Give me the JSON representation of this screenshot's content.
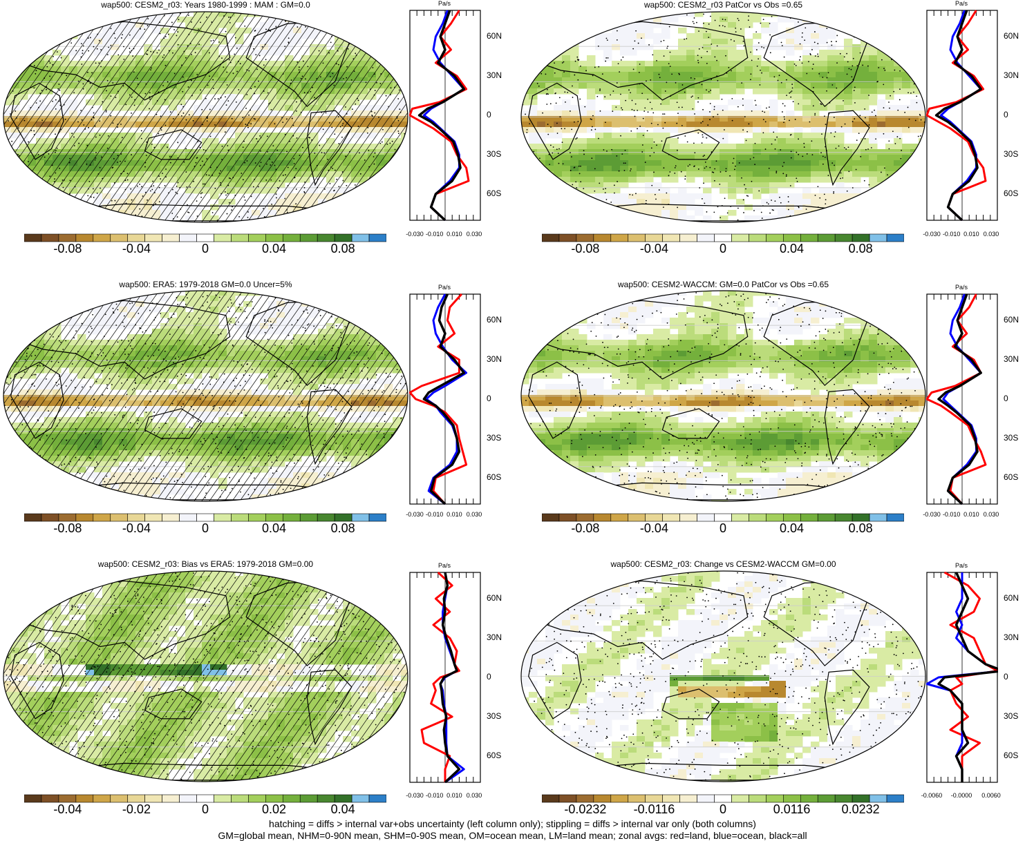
{
  "panels": [
    {
      "title": "wap500: CESM2_r03: Years 1980-1999 : MAM : GM=0.0",
      "hatched": true,
      "field": "model",
      "colorbar_labels": [
        "-0.08",
        "-0.04",
        "0",
        "0.04",
        "0.08"
      ],
      "profile_xticks": [
        "-0.030",
        "-0.010",
        "0.010",
        "0.030"
      ]
    },
    {
      "title": "wap500: CESM2_r03 PatCor vs Obs =0.65",
      "hatched": false,
      "field": "model",
      "colorbar_labels": [
        "-0.08",
        "-0.04",
        "0",
        "0.04",
        "0.08"
      ],
      "profile_xticks": [
        "-0.030",
        "-0.010",
        "0.010",
        "0.030"
      ]
    },
    {
      "title": "wap500: ERA5: 1979-2018 GM=0.0 Uncer=5%",
      "hatched": true,
      "field": "obs",
      "colorbar_labels": [
        "-0.08",
        "-0.04",
        "0",
        "0.04",
        "0.08"
      ],
      "profile_xticks": [
        "-0.030",
        "-0.010",
        "0.010",
        "0.030"
      ]
    },
    {
      "title": "wap500: CESM2-WACCM: GM=0.0 PatCor vs Obs =0.65",
      "hatched": false,
      "field": "model2",
      "colorbar_labels": [
        "-0.08",
        "-0.04",
        "0",
        "0.04",
        "0.08"
      ],
      "profile_xticks": [
        "-0.030",
        "-0.010",
        "0.010",
        "0.030"
      ]
    },
    {
      "title": "wap500: CESM2_r03: Bias vs ERA5: 1979-2018 GM=0.00",
      "hatched": true,
      "field": "bias",
      "colorbar_labels": [
        "-0.04",
        "-0.02",
        "0",
        "0.02",
        "0.04"
      ],
      "profile_xticks": [
        "-0.030",
        "-0.010",
        "0.010",
        "0.030"
      ]
    },
    {
      "title": "wap500: CESM2_r03: Change vs CESM2-WACCM GM=0.00",
      "hatched": false,
      "field": "change",
      "colorbar_labels": [
        "-0.0232",
        "-0.0116",
        "0",
        "0.0116",
        "0.0232"
      ],
      "profile_xticks": [
        "-0.0060",
        "-0.0000",
        "0.0060"
      ]
    }
  ],
  "profile_units": "Pa/s",
  "profile_lat_labels": [
    "60N",
    "30N",
    "0",
    "30S",
    "60S"
  ],
  "colormap": [
    "#5a3a1c",
    "#7e5026",
    "#9c6c30",
    "#b8882f",
    "#cfa648",
    "#dcbf6f",
    "#e8d796",
    "#f0e6b4",
    "#f6efd1",
    "#f3f4fa",
    "#ffffff",
    "#d9eba4",
    "#bbdc7b",
    "#a3cf5c",
    "#8cc047",
    "#74b03c",
    "#5c9c35",
    "#48872f",
    "#337129",
    "#80c0e8",
    "#2c7fc8"
  ],
  "line_colors": {
    "land": "#ff0000",
    "ocean": "#0000ff",
    "all": "#000000"
  },
  "footnote": {
    "line1": "hatching = diffs > internal var+obs uncertainty (left column only); stippling = diffs > internal var only (both columns)",
    "line2": "GM=global mean, NHM=0-90N mean, SHM=0-90S mean, OM=ocean mean, LM=land mean; zonal avgs: red=land, blue=ocean, black=all"
  },
  "chart_data": {
    "type": "heatmap",
    "description_of_panels": "six Robinson-projection global maps of wap500 with zonal-average profiles",
    "zonal_profiles": {
      "lat": [
        80,
        70,
        60,
        50,
        40,
        30,
        20,
        10,
        5,
        0,
        -5,
        -10,
        -20,
        -30,
        -40,
        -50,
        -60,
        -70,
        -80
      ],
      "panels": [
        {
          "name": "CESM2_r03",
          "land": [
            0.012,
            0.005,
            -0.004,
            0.005,
            -0.008,
            0.01,
            0.018,
            -0.005,
            -0.028,
            -0.03,
            -0.02,
            -0.01,
            0.005,
            0.01,
            0.018,
            0.02,
            -0.008,
            -0.012,
            0.0
          ],
          "ocean": [
            0.002,
            -0.002,
            -0.008,
            -0.01,
            -0.004,
            0.006,
            0.016,
            -0.002,
            -0.012,
            -0.018,
            -0.01,
            -0.004,
            0.008,
            0.012,
            0.012,
            0.004,
            -0.008,
            -0.012,
            0.0
          ],
          "all": [
            0.004,
            0.0,
            -0.004,
            0.0,
            -0.006,
            0.008,
            0.016,
            -0.002,
            -0.015,
            -0.022,
            -0.012,
            -0.005,
            0.007,
            0.011,
            0.013,
            0.006,
            -0.008,
            -0.012,
            0.0
          ]
        },
        {
          "name": "CESM2_r03 PatCor",
          "land": [
            0.012,
            0.005,
            -0.004,
            0.005,
            -0.008,
            0.01,
            0.018,
            -0.005,
            -0.028,
            -0.03,
            -0.02,
            -0.01,
            0.005,
            0.01,
            0.018,
            0.02,
            -0.008,
            -0.012,
            0.0
          ],
          "ocean": [
            0.002,
            -0.002,
            -0.008,
            -0.01,
            -0.004,
            0.006,
            0.016,
            -0.002,
            -0.012,
            -0.018,
            -0.01,
            -0.004,
            0.008,
            0.012,
            0.012,
            0.004,
            -0.008,
            -0.012,
            0.0
          ],
          "all": [
            0.004,
            0.0,
            -0.004,
            0.0,
            -0.006,
            0.008,
            0.016,
            -0.002,
            -0.015,
            -0.022,
            -0.012,
            -0.005,
            0.007,
            0.011,
            0.013,
            0.006,
            -0.008,
            -0.012,
            0.0
          ]
        },
        {
          "name": "ERA5",
          "land": [
            0.014,
            0.004,
            0.002,
            0.008,
            -0.006,
            0.012,
            0.012,
            -0.02,
            -0.03,
            -0.025,
            -0.01,
            0.0,
            0.01,
            0.012,
            0.015,
            0.018,
            -0.008,
            -0.01,
            0.0
          ],
          "ocean": [
            0.0,
            -0.006,
            -0.01,
            -0.008,
            -0.002,
            0.006,
            0.018,
            0.0,
            -0.01,
            -0.016,
            -0.008,
            -0.004,
            0.006,
            0.01,
            0.01,
            0.004,
            -0.01,
            -0.014,
            0.0
          ],
          "all": [
            0.002,
            -0.003,
            -0.005,
            0.0,
            -0.004,
            0.008,
            0.016,
            -0.004,
            -0.014,
            -0.018,
            -0.008,
            -0.002,
            0.007,
            0.01,
            0.012,
            0.006,
            -0.009,
            -0.012,
            0.0
          ]
        },
        {
          "name": "CESM2-WACCM",
          "land": [
            0.012,
            0.006,
            -0.004,
            0.004,
            -0.008,
            0.01,
            0.016,
            -0.006,
            -0.026,
            -0.03,
            -0.018,
            -0.01,
            0.005,
            0.01,
            0.016,
            0.02,
            -0.008,
            -0.01,
            0.0
          ],
          "ocean": [
            0.002,
            -0.002,
            -0.008,
            -0.01,
            -0.004,
            0.006,
            0.016,
            -0.002,
            -0.012,
            -0.016,
            -0.01,
            -0.004,
            0.008,
            0.012,
            0.012,
            0.004,
            -0.008,
            -0.012,
            0.0
          ],
          "all": [
            0.004,
            0.0,
            -0.004,
            0.0,
            -0.006,
            0.008,
            0.016,
            -0.002,
            -0.014,
            -0.02,
            -0.012,
            -0.005,
            0.007,
            0.011,
            0.013,
            0.006,
            -0.008,
            -0.012,
            0.0
          ]
        },
        {
          "name": "Bias vs ERA5",
          "land": [
            -0.006,
            0.006,
            -0.008,
            0.004,
            -0.01,
            0.004,
            0.01,
            0.008,
            0.012,
            -0.004,
            -0.01,
            -0.008,
            -0.012,
            0.006,
            -0.02,
            -0.018,
            0.004,
            0.0,
            0.0
          ],
          "ocean": [
            0.0,
            0.002,
            0.0,
            -0.002,
            -0.002,
            0.0,
            0.004,
            0.008,
            0.01,
            0.0,
            -0.004,
            -0.002,
            -0.001,
            0.001,
            0.001,
            0.001,
            0.002,
            0.016,
            0.0
          ],
          "all": [
            0.0,
            0.002,
            -0.001,
            0.0,
            -0.002,
            0.001,
            0.005,
            0.008,
            0.01,
            -0.001,
            -0.004,
            -0.003,
            -0.002,
            0.001,
            -0.001,
            0.0,
            0.002,
            0.012,
            0.0
          ]
        },
        {
          "name": "Change vs CESM2-WACCM",
          "land": [
            -0.003,
            0.001,
            0.003,
            0.002,
            -0.002,
            0.002,
            0.003,
            0.004,
            0.006,
            -0.001,
            0.0,
            -0.002,
            -0.001,
            0.001,
            -0.002,
            0.003,
            0.0,
            0.0,
            0.0
          ],
          "ocean": [
            0.0,
            0.0,
            0.0,
            -0.001,
            0.0,
            -0.001,
            0.001,
            0.004,
            0.007,
            -0.004,
            -0.006,
            -0.002,
            0.0,
            0.0,
            0.0,
            0.0,
            -0.001,
            0.0,
            0.0
          ],
          "all": [
            -0.001,
            0.0,
            0.001,
            0.0,
            -0.001,
            0.0,
            0.001,
            0.004,
            0.007,
            -0.003,
            -0.004,
            -0.002,
            0.0,
            0.0,
            0.0,
            0.001,
            -0.001,
            0.0,
            0.0
          ]
        }
      ],
      "xlim_default": [
        -0.03,
        0.03
      ],
      "xlim_change": [
        -0.006,
        0.006
      ],
      "ylim": [
        -80,
        80
      ]
    },
    "colorbar_ticks": {
      "default": [
        "-0.08",
        "-0.04",
        "0",
        "0.04",
        "0.08"
      ],
      "bias": [
        "-0.04",
        "-0.02",
        "0",
        "0.02",
        "0.04"
      ],
      "change": [
        "-0.0232",
        "-0.0116",
        "0",
        "0.0116",
        "0.0232"
      ]
    }
  }
}
